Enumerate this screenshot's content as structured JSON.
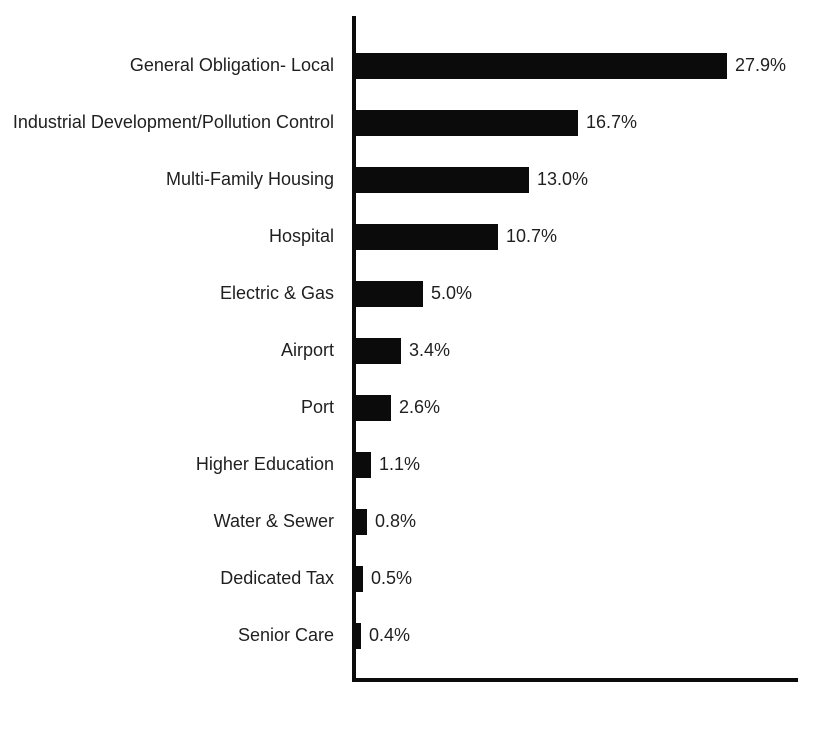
{
  "chart_data": {
    "type": "bar",
    "orientation": "horizontal",
    "title": "",
    "xlabel": "",
    "ylabel": "",
    "categories": [
      "General Obligation- Local",
      "Industrial Development/Pollution Control",
      "Multi-Family Housing",
      "Hospital",
      "Electric & Gas",
      "Airport",
      "Port",
      "Higher Education",
      "Water & Sewer",
      "Dedicated Tax",
      "Senior Care"
    ],
    "values": [
      27.9,
      16.7,
      13.0,
      10.7,
      5.0,
      3.4,
      2.6,
      1.1,
      0.8,
      0.5,
      0.4
    ],
    "value_labels": [
      "27.9%",
      "16.7%",
      "13.0%",
      "10.7%",
      "5.0%",
      "3.4%",
      "2.6%",
      "1.1%",
      "0.8%",
      "0.5%",
      "0.4%"
    ],
    "xlim": [
      0,
      33.5
    ],
    "grid": false,
    "legend": false
  },
  "colors": {
    "bar": "#0b0b0b",
    "axis": "#0b0b0b",
    "text": "#1f1f1f",
    "background": "#ffffff"
  }
}
